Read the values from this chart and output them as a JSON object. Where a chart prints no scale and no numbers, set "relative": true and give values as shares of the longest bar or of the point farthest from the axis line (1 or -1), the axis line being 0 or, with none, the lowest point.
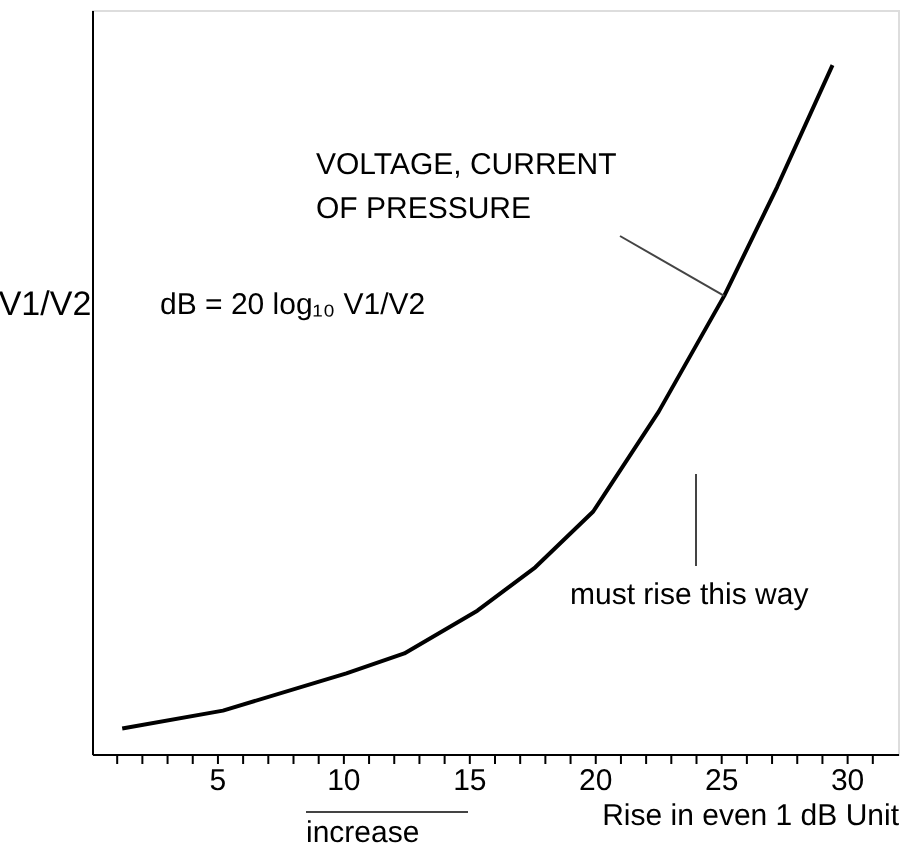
{
  "chart_data": {
    "type": "line",
    "relative": true,
    "marker": "none",
    "line_style": "solid",
    "grid": false,
    "xlabel": "Rise in even 1 dB Unit",
    "ylabel": "V1/V2",
    "xlim": [
      0,
      32
    ],
    "xticks": [
      {
        "value": 1,
        "label": null
      },
      {
        "value": 2,
        "label": null
      },
      {
        "value": 3,
        "label": null
      },
      {
        "value": 4,
        "label": null
      },
      5,
      {
        "value": 6,
        "label": null
      },
      {
        "value": 7,
        "label": null
      },
      {
        "value": 8,
        "label": null
      },
      {
        "value": 9,
        "label": null
      },
      10,
      {
        "value": 11,
        "label": null
      },
      {
        "value": 12,
        "label": null
      },
      {
        "value": 13,
        "label": null
      },
      {
        "value": 14,
        "label": null
      },
      15,
      {
        "value": 16,
        "label": null
      },
      {
        "value": 17,
        "label": null
      },
      {
        "value": 18,
        "label": null
      },
      {
        "value": 19,
        "label": null
      },
      20,
      {
        "value": 21,
        "label": null
      },
      {
        "value": 22,
        "label": null
      },
      {
        "value": 23,
        "label": null
      },
      {
        "value": 24,
        "label": null
      },
      25,
      {
        "value": 26,
        "label": null
      },
      {
        "value": 27,
        "label": null
      },
      {
        "value": 28,
        "label": null
      },
      {
        "value": 29,
        "label": null
      },
      30,
      {
        "value": 31,
        "label": null
      }
    ],
    "series": [
      {
        "color": "#000000",
        "x": [
          1.2,
          5.2,
          10.1,
          12.4,
          15.3,
          17.6,
          19.9,
          22.5,
          25.1,
          27.2,
          29.4
        ],
        "values": [
          0.037,
          0.063,
          0.117,
          0.146,
          0.208,
          0.271,
          0.352,
          0.497,
          0.665,
          0.823,
          1
        ]
      }
    ],
    "annotations": [
      {
        "text": "VOLTAGE, CURRENT\nOF PRESSURE",
        "x": 25.1,
        "y": 0.665
      },
      "must rise this way",
      "dB = 20 log₁₀ V1/V2",
      "increase"
    ]
  }
}
